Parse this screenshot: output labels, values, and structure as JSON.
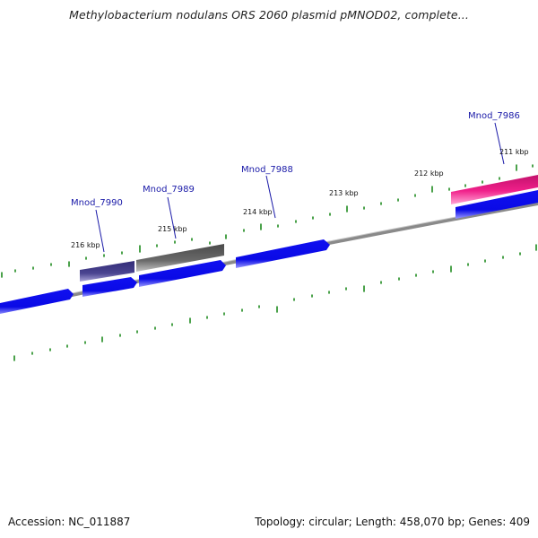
{
  "title": "Methylobacterium nodulans ORS 2060 plasmid pMNOD02, complete...",
  "footer": {
    "accession": "Accession: NC_011887",
    "summary": "Topology: circular; Length: 458,070 bp; Genes: 409"
  },
  "colors": {
    "forward_gene": "#1010f0",
    "gene_light_edge": "#8c8cff",
    "gene_dark_edge": "#00008a",
    "backbone": "#8a8a8a",
    "tick": "#1e8a1e",
    "label": "#1a1aa8",
    "purple_gene": "#4a4490",
    "gray_gene": "#6a6a6a",
    "pink_gene": "#f0208a"
  },
  "gene_labels": [
    {
      "text": "Mnod_7990"
    },
    {
      "text": "Mnod_7989"
    },
    {
      "text": "Mnod_7988"
    },
    {
      "text": "Mnod_7986"
    }
  ],
  "kbp_labels": [
    {
      "text": "216 kbp"
    },
    {
      "text": "215 kbp"
    },
    {
      "text": "214 kbp"
    },
    {
      "text": "213 kbp"
    },
    {
      "text": "212 kbp"
    },
    {
      "text": "211 kbp"
    }
  ]
}
